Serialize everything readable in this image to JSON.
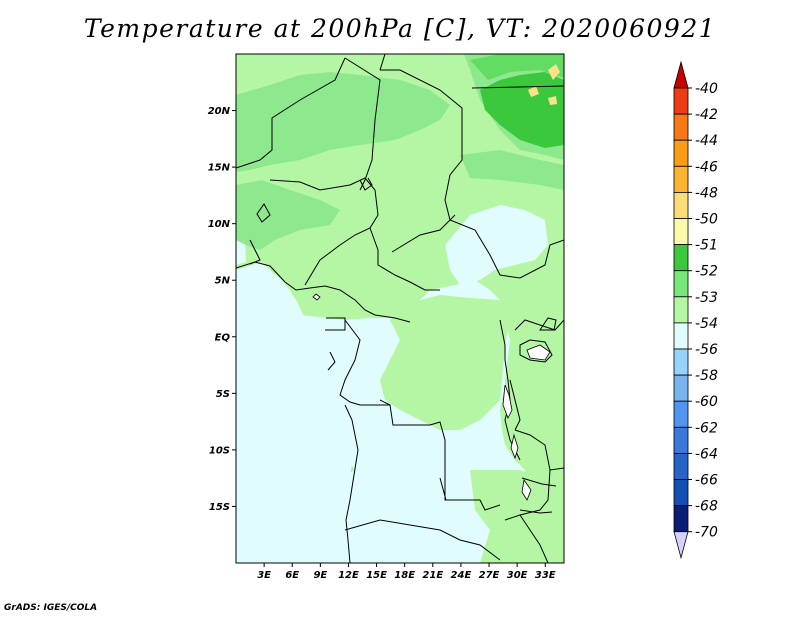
{
  "title": "Temperature at 200hPa [C], VT: 2020060921",
  "credit": "GrADS: IGES/COLA",
  "map": {
    "lon_range": [
      0,
      35
    ],
    "lat_range": [
      -20,
      25
    ],
    "lat_ticks": [
      "20N",
      "15N",
      "10N",
      "5N",
      "EQ",
      "5S",
      "10S",
      "15S"
    ],
    "lon_ticks": [
      "3E",
      "6E",
      "9E",
      "12E",
      "15E",
      "18E",
      "21E",
      "24E",
      "27E",
      "30E",
      "33E"
    ],
    "colors": {
      "land_green_mid": "#62dc62",
      "light_green": "#b4f6a4",
      "pale_green": "#8ee88e",
      "dark_green": "#3cc83c",
      "pale_cyan": "#e0fcfc",
      "yellow": "#fae28a"
    }
  },
  "colorbar": {
    "levels": [
      {
        "label": "-40",
        "color": "#e00000"
      },
      {
        "label": "-42",
        "color": "#f03c14"
      },
      {
        "label": "-44",
        "color": "#f87814"
      },
      {
        "label": "-46",
        "color": "#fa9c14"
      },
      {
        "label": "-48",
        "color": "#fab432"
      },
      {
        "label": "-50",
        "color": "#fadc78"
      },
      {
        "label": "-51",
        "color": "#fafaaa"
      },
      {
        "label": "-52",
        "color": "#3cc83c"
      },
      {
        "label": "-53",
        "color": "#78e678"
      },
      {
        "label": "-54",
        "color": "#b4f6a4"
      },
      {
        "label": "-56",
        "color": "#e0fcfc"
      },
      {
        "label": "-58",
        "color": "#96d2fa"
      },
      {
        "label": "-60",
        "color": "#78b4f0"
      },
      {
        "label": "-62",
        "color": "#5096f0"
      },
      {
        "label": "-64",
        "color": "#3c78dc"
      },
      {
        "label": "-66",
        "color": "#2864c8"
      },
      {
        "label": "-68",
        "color": "#1450b4"
      },
      {
        "label": "-70",
        "color": "#0a1e78"
      }
    ],
    "top_arrow_color": "#c80000",
    "bottom_arrow_color": "#d2d2fa"
  }
}
